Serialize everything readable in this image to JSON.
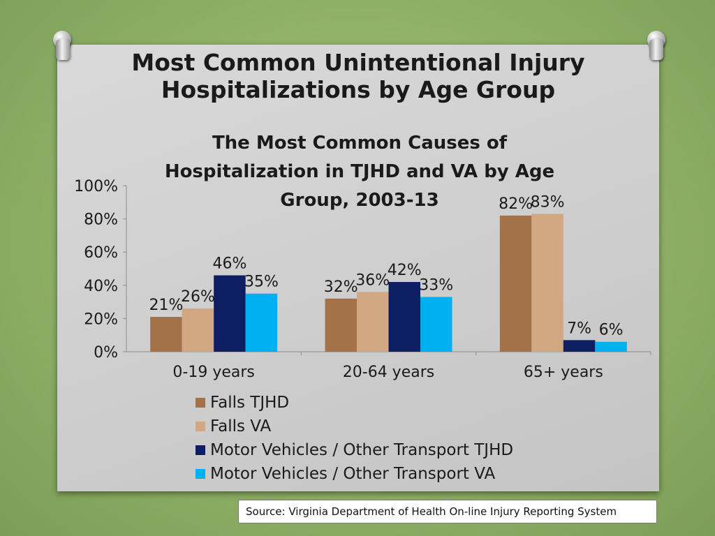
{
  "slide": {
    "title_line1": "Most Common Unintentional Injury",
    "title_line2": "Hospitalizations by Age Group",
    "source": "Source: Virginia Department of Health On-line Injury Reporting System"
  },
  "chart_data": {
    "type": "bar",
    "title_lines": [
      "The Most Common Causes of",
      "Hospitalization in TJHD and VA by Age",
      "Group, 2003-13"
    ],
    "categories": [
      "0-19 years",
      "20-64 years",
      "65+ years"
    ],
    "series": [
      {
        "name": "Falls TJHD",
        "color": "#a47248",
        "values": [
          21,
          32,
          82
        ],
        "labels": [
          "21%",
          "32%",
          "82%"
        ]
      },
      {
        "name": "Falls VA",
        "color": "#d1a882",
        "values": [
          26,
          36,
          83
        ],
        "labels": [
          "26%",
          "36%",
          "83%"
        ]
      },
      {
        "name": "Motor Vehicles / Other Transport TJHD",
        "color": "#0d1e63",
        "values": [
          46,
          42,
          7
        ],
        "labels": [
          "46%",
          "42%",
          "7%"
        ]
      },
      {
        "name": "Motor Vehicles / Other Transport VA",
        "color": "#00b0f0",
        "values": [
          35,
          33,
          6
        ],
        "labels": [
          "35%",
          "33%",
          "6%"
        ]
      }
    ],
    "yticks": [
      "0%",
      "20%",
      "40%",
      "60%",
      "80%",
      "100%"
    ],
    "ylim": [
      0,
      100
    ],
    "legend_position": "bottom",
    "grid": false
  }
}
